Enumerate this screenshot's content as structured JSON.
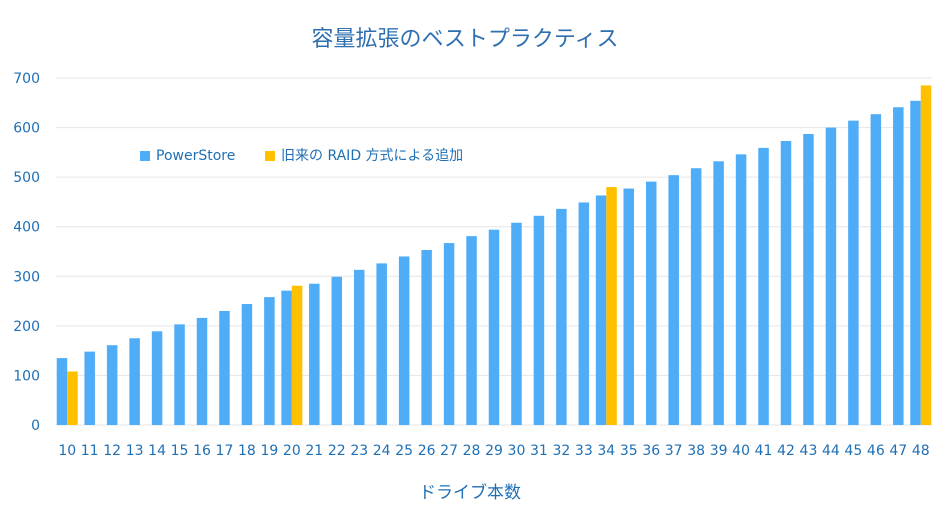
{
  "chart_data": {
    "type": "bar",
    "title": "容量拡張のベストプラクティス",
    "xlabel": "ドライブ本数",
    "ylabel": "",
    "ylim": [
      0,
      700
    ],
    "yticks": [
      0,
      100,
      200,
      300,
      400,
      500,
      600,
      700
    ],
    "grid": true,
    "legend_position": "top-left",
    "categories": [
      "10",
      "11",
      "12",
      "13",
      "14",
      "15",
      "16",
      "17",
      "18",
      "19",
      "20",
      "21",
      "22",
      "23",
      "24",
      "25",
      "26",
      "27",
      "28",
      "29",
      "30",
      "31",
      "32",
      "33",
      "34",
      "35",
      "36",
      "37",
      "38",
      "39",
      "40",
      "41",
      "42",
      "43",
      "44",
      "45",
      "46",
      "47",
      "48"
    ],
    "series": [
      {
        "name": "PowerStore",
        "color": "#4facf7",
        "values": [
          135,
          148,
          161,
          175,
          189,
          203,
          216,
          230,
          244,
          258,
          271,
          285,
          299,
          313,
          326,
          340,
          353,
          367,
          381,
          394,
          408,
          422,
          436,
          449,
          463,
          477,
          491,
          504,
          518,
          532,
          546,
          559,
          573,
          587,
          600,
          614,
          627,
          641,
          654
        ]
      },
      {
        "name": "旧来の RAID 方式による追加",
        "color": "#ffc000",
        "values": [
          108,
          null,
          null,
          null,
          null,
          null,
          null,
          null,
          null,
          null,
          281,
          null,
          null,
          null,
          null,
          null,
          null,
          null,
          null,
          null,
          null,
          null,
          null,
          null,
          480,
          null,
          null,
          null,
          null,
          null,
          null,
          null,
          null,
          null,
          null,
          null,
          null,
          null,
          685
        ]
      }
    ]
  }
}
